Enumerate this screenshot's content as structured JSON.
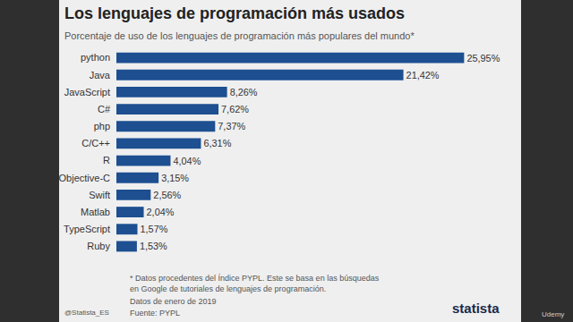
{
  "chart_data": {
    "type": "bar",
    "orientation": "horizontal",
    "title": "Los lenguajes de programación más usados",
    "subtitle": "Porcentaje de uso de los lenguajes de programación más populares del mundo*",
    "categories": [
      "python",
      "Java",
      "JavaScript",
      "C#",
      "php",
      "C/C++",
      "R",
      "Objective-C",
      "Swift",
      "Matlab",
      "TypeScript",
      "Ruby"
    ],
    "values": [
      25.95,
      21.42,
      8.26,
      7.62,
      7.37,
      6.31,
      4.04,
      3.15,
      2.56,
      2.04,
      1.57,
      1.53
    ],
    "value_labels": [
      "25,95%",
      "21,42%",
      "8,26%",
      "7,62%",
      "7,37%",
      "6,31%",
      "4,04%",
      "3,15%",
      "2,56%",
      "2,04%",
      "1,57%",
      "1,53%"
    ],
    "data_labels": true,
    "color": "#1d4f91",
    "xlim": [
      0,
      29.4
    ],
    "grid": false,
    "tick_labels": "y",
    "footnote": [
      "* Datos procedentes del Índice PYPL. Este se basa en las búsquedas",
      "en Google de tutoriales de lenguajes de programación."
    ],
    "date_note": "Datos de enero de 2019",
    "source": "Fuente: PYPL",
    "handle": "@Statista_ES",
    "brand": "statista",
    "watermark": "Udemy"
  }
}
